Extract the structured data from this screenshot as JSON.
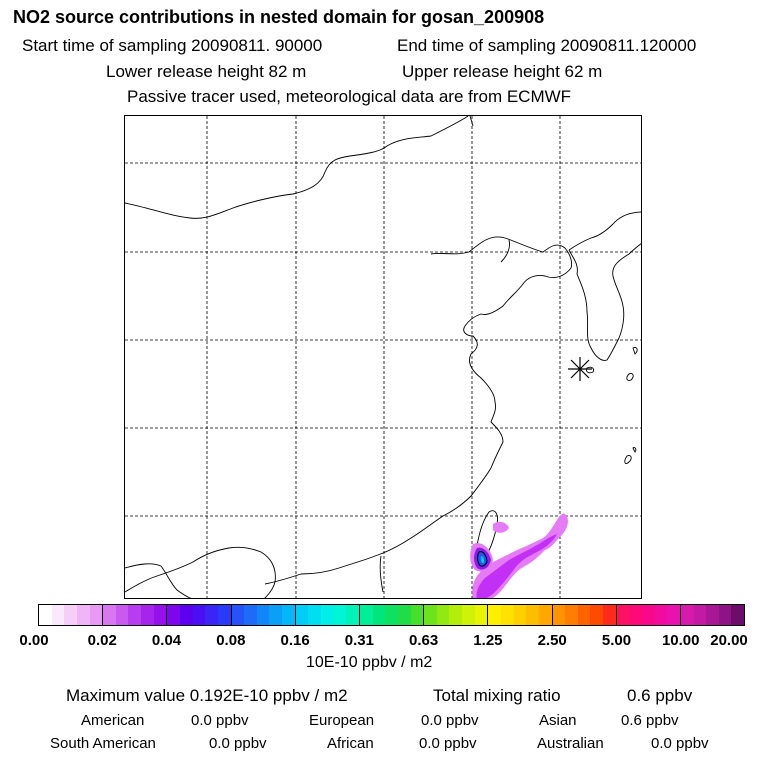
{
  "header": {
    "title": "NO2 source contributions in nested domain for gosan_200908",
    "start_time": "Start time of sampling 20090811. 90000",
    "end_time": "End time of sampling 20090811.120000",
    "lower_height": "Lower release height   82 m",
    "upper_height": "Upper release height   62 m",
    "note": "Passive tracer used, meteorological data are from ECMWF"
  },
  "map": {
    "receptor_marker": "asterisk-icon",
    "plume_colors": [
      "#e57bf7",
      "#c130f4",
      "#8a1cf2",
      "#2255f0",
      "#00b7f7",
      "#00e6c8",
      "#000000"
    ]
  },
  "colorbar": {
    "ticks": [
      "0.00",
      "0.02",
      "0.04",
      "0.08",
      "0.16",
      "0.31",
      "0.63",
      "1.25",
      "2.50",
      "5.00",
      "10.00",
      "20.00"
    ],
    "segments": [
      [
        "#ffffff",
        "#fbe8fd",
        "#f6cff9",
        "#efb5f6",
        "#e89af3"
      ],
      [
        "#d877f1",
        "#c95aef",
        "#b83dee",
        "#a624ec",
        "#9510ea"
      ],
      [
        "#7e06ec",
        "#5e00f0",
        "#4a10f4",
        "#3a24f6",
        "#2b3af7"
      ],
      [
        "#2553f8",
        "#1d6cf8",
        "#1485f8",
        "#0b9ff8",
        "#05b6f8"
      ],
      [
        "#00cdf6",
        "#00dff2",
        "#00efe8",
        "#00f5d4",
        "#00f3b8"
      ],
      [
        "#00ee98",
        "#00e67c",
        "#0ee060",
        "#20dc46",
        "#48de2c"
      ],
      [
        "#6ee21c",
        "#92e812",
        "#b4ed0c",
        "#d0f108",
        "#e8f404"
      ],
      [
        "#fcf000",
        "#ffe200",
        "#ffd000",
        "#ffbd00",
        "#ffa800"
      ],
      [
        "#ff9400",
        "#ff7d00",
        "#ff6400",
        "#ff4a00",
        "#ff2a1c"
      ],
      [
        "#ff1060",
        "#ff0878",
        "#fa088c",
        "#f20c9e",
        "#e812ae"
      ],
      [
        "#d81aac",
        "#c21aa4",
        "#a81896",
        "#8e1486",
        "#6e0c6a"
      ]
    ],
    "unit": "10E-10 ppbv / m2"
  },
  "summary": {
    "max_label": "Maximum value  0.192E-10 ppbv / m2",
    "total_label": "Total mixing ratio",
    "total_value": "0.6 ppbv",
    "regions": [
      {
        "name": "American",
        "value": "0.0 ppbv"
      },
      {
        "name": "European",
        "value": "0.0 ppbv"
      },
      {
        "name": "Asian",
        "value": "0.6 ppbv"
      },
      {
        "name": "South American",
        "value": "0.0 ppbv"
      },
      {
        "name": "African",
        "value": "0.0 ppbv"
      },
      {
        "name": "Australian",
        "value": "0.0 ppbv"
      }
    ]
  }
}
